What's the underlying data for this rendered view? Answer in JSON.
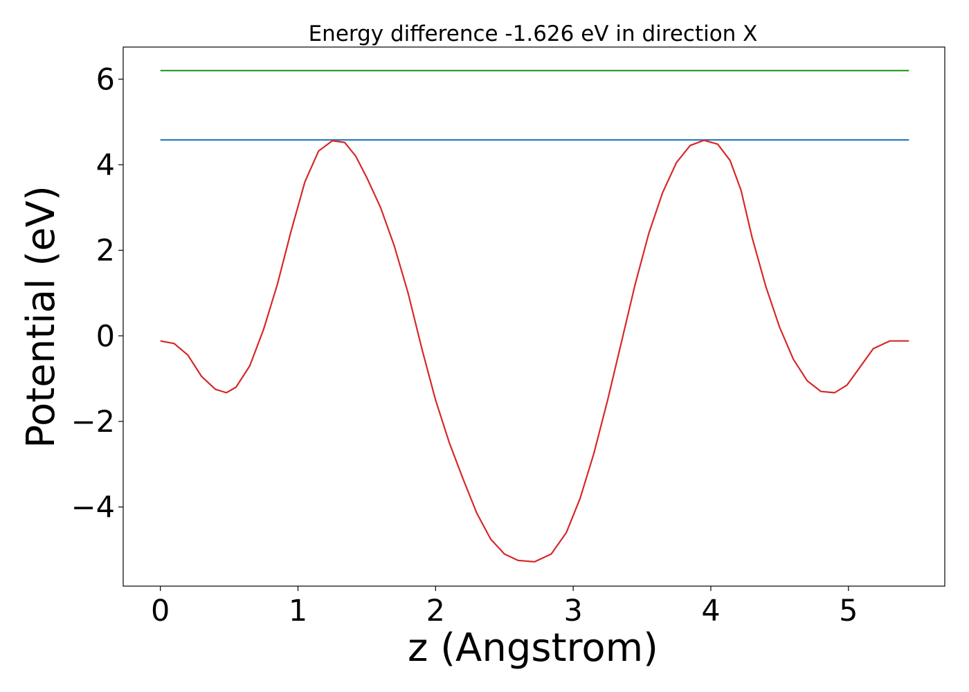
{
  "chart_data": {
    "type": "line",
    "title": "Energy difference -1.626 eV in direction X",
    "xlabel": "z (Angstrom)",
    "ylabel": "Potential (eV)",
    "xlim": [
      -0.27,
      5.7
    ],
    "ylim": [
      -5.85,
      6.75
    ],
    "xticks": [
      0,
      1,
      2,
      3,
      4,
      5
    ],
    "xtick_labels": [
      "0",
      "1",
      "2",
      "3",
      "4",
      "5"
    ],
    "yticks": [
      -4,
      -2,
      0,
      2,
      4,
      6
    ],
    "ytick_labels": [
      "−4",
      "−2",
      "0",
      "2",
      "4",
      "6"
    ],
    "grid": false,
    "legend": "none",
    "series": [
      {
        "color": "#2ca02c",
        "x": [
          0.0,
          5.44
        ],
        "y": [
          6.2,
          6.2
        ]
      },
      {
        "color": "#1f77b4",
        "x": [
          0.0,
          5.44
        ],
        "y": [
          4.58,
          4.58
        ]
      },
      {
        "color": "#d62728",
        "x": [
          0.0,
          0.1,
          0.2,
          0.3,
          0.4,
          0.48,
          0.55,
          0.65,
          0.75,
          0.85,
          0.95,
          1.05,
          1.15,
          1.25,
          1.34,
          1.42,
          1.5,
          1.6,
          1.7,
          1.8,
          1.9,
          2.0,
          2.1,
          2.2,
          2.3,
          2.4,
          2.5,
          2.6,
          2.72,
          2.84,
          2.95,
          3.05,
          3.15,
          3.25,
          3.35,
          3.45,
          3.55,
          3.65,
          3.75,
          3.85,
          3.95,
          4.05,
          4.14,
          4.22,
          4.3,
          4.4,
          4.5,
          4.6,
          4.7,
          4.8,
          4.9,
          4.99,
          5.08,
          5.18,
          5.3,
          5.44
        ],
        "y": [
          -0.12,
          -0.18,
          -0.45,
          -0.95,
          -1.25,
          -1.33,
          -1.2,
          -0.7,
          0.15,
          1.2,
          2.45,
          3.6,
          4.32,
          4.56,
          4.52,
          4.2,
          3.7,
          3.0,
          2.1,
          1.0,
          -0.3,
          -1.5,
          -2.5,
          -3.35,
          -4.15,
          -4.75,
          -5.1,
          -5.25,
          -5.28,
          -5.1,
          -4.6,
          -3.8,
          -2.75,
          -1.5,
          -0.15,
          1.2,
          2.4,
          3.35,
          4.05,
          4.45,
          4.57,
          4.48,
          4.1,
          3.4,
          2.3,
          1.15,
          0.2,
          -0.55,
          -1.05,
          -1.3,
          -1.33,
          -1.15,
          -0.75,
          -0.3,
          -0.12,
          -0.12
        ]
      }
    ]
  }
}
